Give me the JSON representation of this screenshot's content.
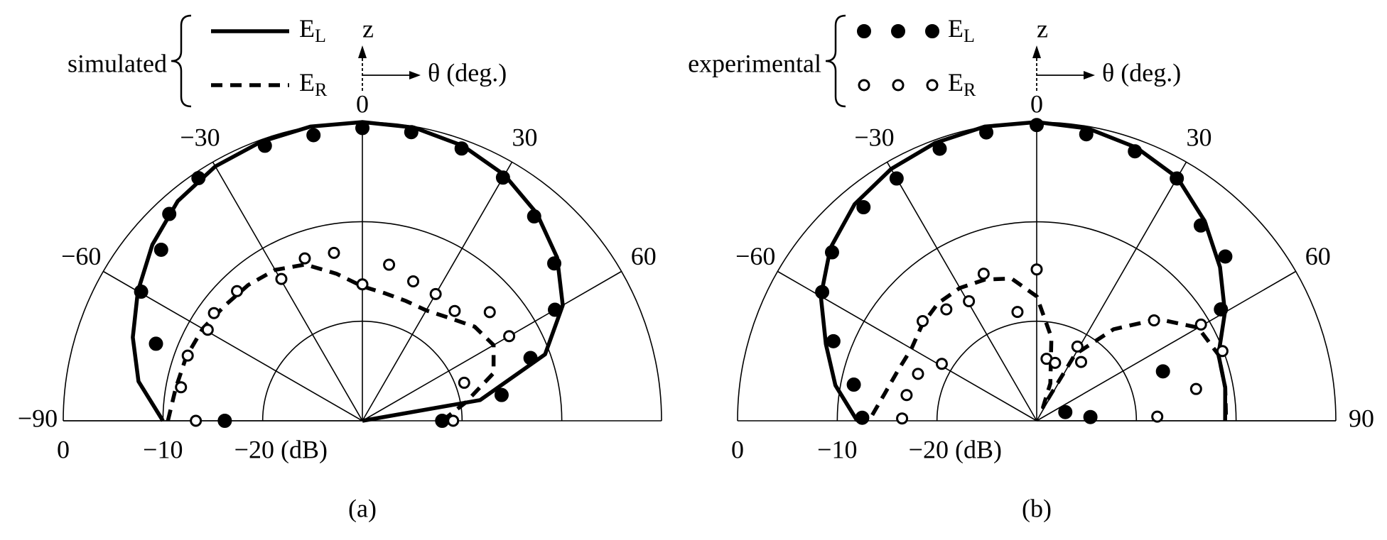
{
  "chart_data": [
    {
      "type": "polar",
      "panel_label": "(a)",
      "legend_label": "simulated",
      "z_label": "z",
      "theta_label": "θ (deg.)",
      "thetalim": [
        -90,
        90
      ],
      "rlim": [
        -30,
        0
      ],
      "thetaticks": [
        {
          "value": -90,
          "label": "−90"
        },
        {
          "value": -60,
          "label": "−60"
        },
        {
          "value": -30,
          "label": "−30"
        },
        0,
        30,
        60
      ],
      "rticks": [
        {
          "value": 0,
          "label": "0"
        },
        {
          "value": -10,
          "label": "−10"
        },
        {
          "value": -20,
          "label": "−20 (dB)"
        }
      ],
      "series": [
        {
          "name": "EL",
          "color": "#000000",
          "line": "solid",
          "theta": [
            -90,
            -80,
            -70,
            -60,
            -50,
            -40,
            -30,
            -20,
            -10,
            0,
            10,
            20,
            30,
            40,
            50,
            60,
            70,
            80,
            90
          ],
          "values": [
            -10,
            -7.2,
            -5.5,
            -4,
            -2.5,
            -1.2,
            -0.5,
            -0.2,
            0,
            0,
            -0.1,
            -0.6,
            -1.5,
            -2.8,
            -4.5,
            -6.8,
            -10.5,
            -18,
            -30
          ]
        },
        {
          "name": "ER",
          "color": "#000000",
          "line": "dashed",
          "theta": [
            -90,
            -80,
            -70,
            -60,
            -50,
            -40,
            -30,
            -20,
            -10,
            0,
            10,
            20,
            30,
            40,
            50,
            60,
            70,
            80,
            90
          ],
          "values": [
            -10.5,
            -11,
            -11.2,
            -11.5,
            -12,
            -12.2,
            -12.5,
            -13.3,
            -15,
            -16.5,
            -17,
            -17.2,
            -17.2,
            -16.5,
            -15.3,
            -14.8,
            -16,
            -19.5,
            -22
          ]
        },
        {
          "color": "#000000",
          "marker": "filled",
          "theta": [
            -90,
            -69.5,
            -59.7,
            -49.6,
            -43,
            -34,
            -19.5,
            -9.7,
            0,
            9.6,
            20,
            30,
            40,
            50.6,
            60,
            69.5,
            79.5,
            90
          ],
          "values": [
            -16.2,
            -7.9,
            -4.3,
            -3.5,
            -1.6,
            -0.6,
            -0.7,
            -0.9,
            -0.6,
            -0.6,
            -0.9,
            -1.8,
            -3.2,
            -5.1,
            -7.7,
            -12,
            -15.8,
            -22
          ]
        },
        {
          "color": "#000000",
          "marker": "open",
          "theta": [
            -90,
            -79.5,
            -69.5,
            -59.5,
            -54,
            -44,
            -29.7,
            -19.5,
            -9.6,
            0,
            9.7,
            20,
            30,
            40,
            49.5,
            60,
            69.5,
            90
          ],
          "values": [
            -13.3,
            -11.5,
            -11.3,
            -12,
            -11.6,
            -11.9,
            -13.6,
            -12.7,
            -12.9,
            -16.3,
            -14.1,
            -15.1,
            -15.3,
            -15.6,
            -13.2,
            -13,
            -19.1,
            -20.9
          ]
        }
      ]
    },
    {
      "type": "polar",
      "panel_label": "(b)",
      "legend_label": "experimental",
      "z_label": "z",
      "theta_label": "θ (deg.)",
      "thetalim": [
        -90,
        90
      ],
      "rlim": [
        -30,
        0
      ],
      "thetaticks": [
        {
          "value": -60,
          "label": "−60"
        },
        {
          "value": -30,
          "label": "−30"
        },
        0,
        30,
        60,
        90
      ],
      "rticks": [
        {
          "value": 0,
          "label": "0"
        },
        {
          "value": -10,
          "label": "−10"
        },
        {
          "value": -20,
          "label": "−20 (dB)"
        }
      ],
      "series": [
        {
          "color": "#000000",
          "line": "solid",
          "theta": [
            -90,
            -80,
            -70,
            -60,
            -50,
            -40,
            -30,
            -20,
            -10,
            0,
            10,
            20,
            30,
            40,
            50,
            60,
            70,
            80,
            90
          ],
          "values": [
            -12,
            -9.5,
            -7.5,
            -5,
            -3,
            -1.6,
            -0.8,
            -0.3,
            0,
            0,
            -0.2,
            -0.8,
            -1.8,
            -3.8,
            -6,
            -8.2,
            -10.6,
            -10.8,
            -11.1
          ]
        },
        {
          "color": "#000000",
          "line": "dashed",
          "theta": [
            -88,
            -80,
            -70,
            -60,
            -50,
            -40,
            -30,
            -20,
            -10,
            0,
            10,
            20,
            25,
            30,
            40,
            50,
            60,
            70,
            80,
            90
          ],
          "values": [
            -13.5,
            -14.5,
            -15.2,
            -15.5,
            -15,
            -14.6,
            -14.6,
            -14.9,
            -15.5,
            -17.5,
            -21.5,
            -26,
            -28.5,
            -22.3,
            -18,
            -14.1,
            -11.3,
            -10.6,
            -10.8,
            -11
          ]
        },
        {
          "name": "EL",
          "color": "#000000",
          "marker": "filled",
          "theta": [
            -89,
            -78.8,
            -68.6,
            -59,
            -50.5,
            -39,
            -30,
            -19.6,
            -9.9,
            0,
            9.8,
            20,
            30,
            40,
            48.9,
            58.8,
            68.6,
            73,
            86
          ],
          "values": [
            -12.5,
            -11.3,
            -8.1,
            -4.9,
            -3.4,
            -2.4,
            -1.9,
            -1,
            -0.6,
            -0.3,
            -0.8,
            -1.2,
            -1.9,
            -4.4,
            -4.9,
            -8.4,
            -16.4,
            -27,
            -24.6
          ]
        },
        {
          "name": "ER",
          "color": "#000000",
          "marker": "open",
          "theta": [
            -89,
            -78.8,
            -68.4,
            -59,
            -48.8,
            -39,
            -29.5,
            -19.8,
            -10,
            0,
            9,
            17.6,
            28.7,
            37,
            49.4,
            59.6,
            69.4,
            78.7,
            88
          ],
          "values": [
            -16.5,
            -16.7,
            -17.2,
            -18.9,
            -14.8,
            -15.6,
            -16.2,
            -14.3,
            -18.9,
            -14.8,
            -23.7,
            -23.9,
            -21.5,
            -22.6,
            -14.5,
            -10.9,
            -10.1,
            -13.7,
            -17.9
          ]
        }
      ]
    }
  ]
}
